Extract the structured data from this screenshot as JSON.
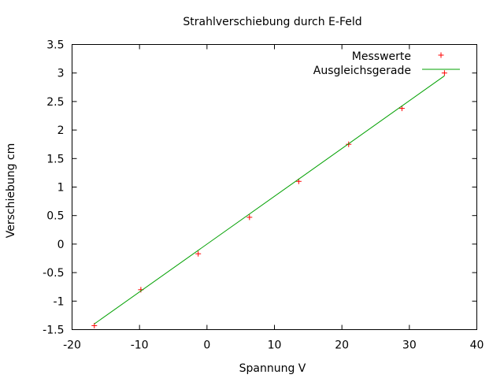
{
  "chart_data": {
    "type": "scatter",
    "title": "Strahlverschiebung durch E-Feld",
    "xlabel": "Spannung V",
    "ylabel": "Verschiebung cm",
    "xlim": [
      -20,
      40
    ],
    "ylim": [
      -1.5,
      3.5
    ],
    "xticks": [
      -20,
      -10,
      0,
      10,
      20,
      30,
      40
    ],
    "xtick_labels": [
      "-20",
      "-10",
      "0",
      "10",
      "20",
      "30",
      "40"
    ],
    "yticks": [
      -1.5,
      -1,
      -0.5,
      0,
      0.5,
      1,
      1.5,
      2,
      2.5,
      3,
      3.5
    ],
    "ytick_labels": [
      "-1.5",
      "-1",
      "-0.5",
      "0",
      "0.5",
      "1",
      "1.5",
      "2",
      "2.5",
      "3",
      "3.5"
    ],
    "grid": false,
    "legend_position": "top-right",
    "series": [
      {
        "name": "Messwerte",
        "kind": "points",
        "marker": "+",
        "color": "#ff0000",
        "x": [
          -16.7,
          -9.8,
          -1.3,
          6.3,
          13.6,
          21.0,
          28.9,
          35.2
        ],
        "y": [
          -1.43,
          -0.8,
          -0.17,
          0.47,
          1.1,
          1.75,
          2.38,
          3.0
        ]
      },
      {
        "name": "Ausgleichsgerade",
        "kind": "line",
        "color": "#00a000",
        "x": [
          -16.7,
          35.2
        ],
        "y": [
          -1.4,
          2.95
        ]
      }
    ]
  }
}
